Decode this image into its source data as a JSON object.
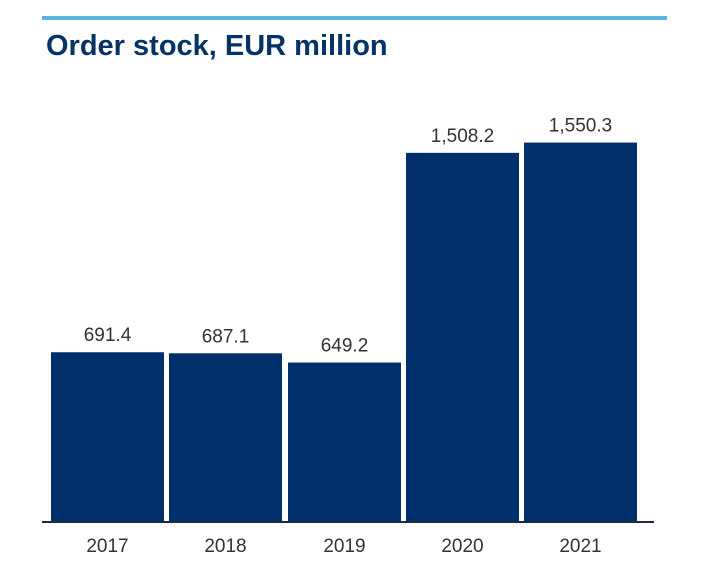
{
  "colors": {
    "accent_rule": "#5bb4e0",
    "title": "#063366",
    "bar": "#00306b",
    "axis": "#1f2a44",
    "label": "#333333"
  },
  "chart_data": {
    "type": "bar",
    "title": "Order stock, EUR million",
    "categories": [
      "2017",
      "2018",
      "2019",
      "2020",
      "2021"
    ],
    "values": [
      691.4,
      687.1,
      649.2,
      1508.2,
      1550.3
    ],
    "value_labels": [
      "691.4",
      "687.1",
      "649.2",
      "1,508.2",
      "1,550.3"
    ],
    "xlabel": "",
    "ylabel": "",
    "ylim": [
      0,
      1600
    ],
    "grid": false,
    "legend": "none"
  }
}
